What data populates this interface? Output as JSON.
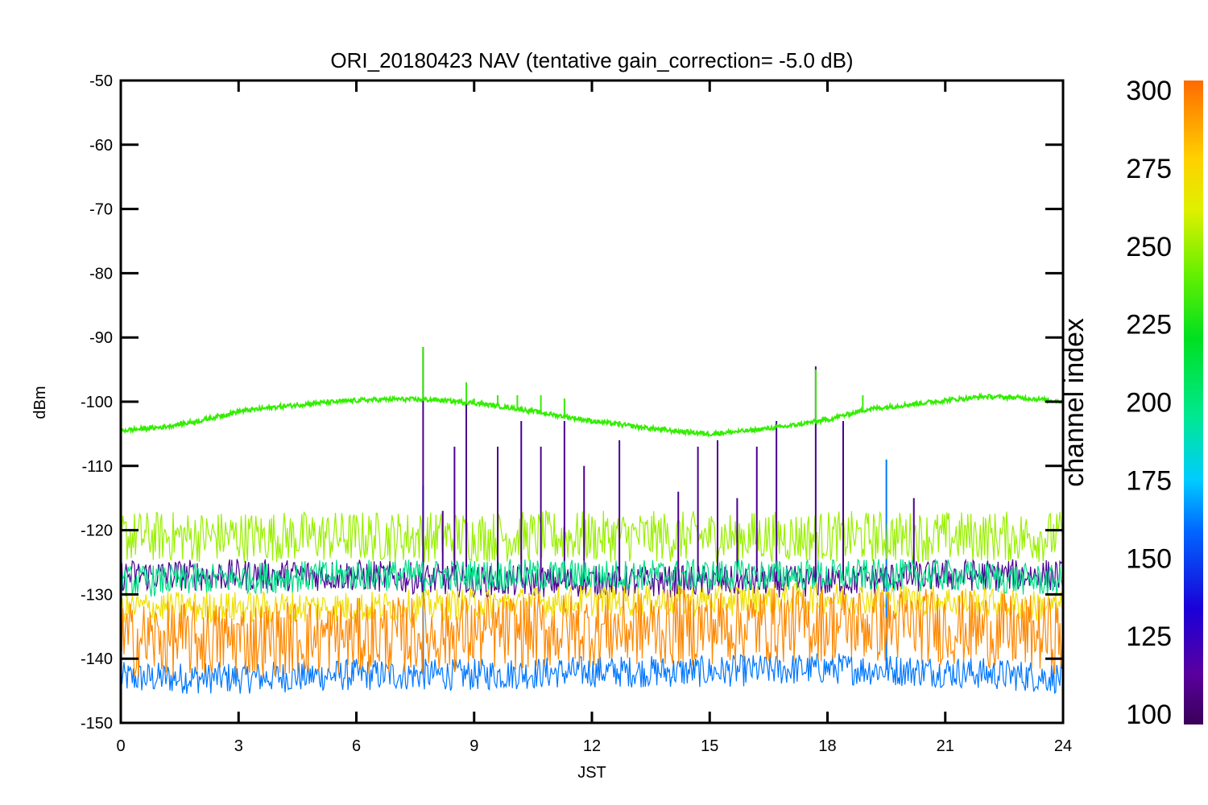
{
  "chart_data": {
    "type": "line",
    "title": "ORI_20180423 NAV (tentative gain_correction= -5.0 dB)",
    "xlabel": "JST",
    "ylabel": "dBm",
    "xlim": [
      0,
      24
    ],
    "ylim": [
      -150,
      -50
    ],
    "x_ticks": [
      0,
      3,
      6,
      9,
      12,
      15,
      18,
      21,
      24
    ],
    "y_ticks": [
      -50,
      -60,
      -70,
      -80,
      -90,
      -100,
      -110,
      -120,
      -130,
      -140,
      -150
    ],
    "x_tick_labels": [
      "0",
      "3",
      "6",
      "9",
      "12",
      "15",
      "18",
      "21",
      "24"
    ],
    "y_tick_labels": [
      "-50",
      "-60",
      "-70",
      "-80",
      "-90",
      "-100",
      "-110",
      "-120",
      "-130",
      "-140",
      "-150"
    ],
    "grid": false,
    "colorbar": {
      "title": "channel index",
      "range": [
        100,
        300
      ],
      "ticks": [
        100,
        125,
        150,
        175,
        200,
        225,
        250,
        275,
        300
      ],
      "tick_labels": [
        "100",
        "125",
        "150",
        "175",
        "200",
        "225",
        "250",
        "275",
        "300"
      ],
      "colormap": "rainbow"
    },
    "series": [
      {
        "channel": 240,
        "color": "#33ee00",
        "x": [
          0,
          1,
          2,
          3,
          4,
          5,
          6,
          7,
          8,
          9,
          10,
          11,
          12,
          13,
          14,
          15,
          16,
          17,
          18,
          19,
          20,
          21,
          22,
          23,
          24
        ],
        "y": [
          -104.5,
          -104,
          -103,
          -101.5,
          -100.8,
          -100.2,
          -99.8,
          -99.6,
          -99.7,
          -100.2,
          -101,
          -102,
          -103,
          -103.8,
          -104.5,
          -105,
          -104.5,
          -103.8,
          -102.8,
          -101.2,
          -100.5,
          -99.8,
          -99.2,
          -99.4,
          -100
        ],
        "spikes": [
          [
            7.7,
            -91.5
          ],
          [
            8.8,
            -97
          ],
          [
            9.6,
            -99
          ],
          [
            10.1,
            -99
          ],
          [
            10.7,
            -99
          ],
          [
            11.3,
            -99.5
          ],
          [
            17.7,
            -95
          ],
          [
            18.9,
            -99
          ],
          [
            9.0,
            -99.5
          ],
          [
            12.7,
            -103
          ]
        ]
      },
      {
        "channel": 262,
        "color": "#99f000",
        "x": [
          0,
          3,
          6,
          9,
          12,
          15,
          18,
          21,
          24
        ],
        "y": [
          -121,
          -121,
          -121,
          -121,
          -121,
          -121,
          -121,
          -121,
          -121
        ],
        "spread": 4
      },
      {
        "channel": 110,
        "color": "#4a0090",
        "x": [
          0,
          3,
          6,
          9,
          12,
          15,
          18,
          21,
          24
        ],
        "y": [
          -127,
          -127,
          -127,
          -128,
          -128,
          -128,
          -128,
          -127,
          -127
        ],
        "spikes": [
          [
            7.7,
            -91.5
          ],
          [
            8.8,
            -97
          ],
          [
            8.5,
            -107
          ],
          [
            9.6,
            -107
          ],
          [
            10.2,
            -103
          ],
          [
            10.7,
            -107
          ],
          [
            11.3,
            -103
          ],
          [
            11.8,
            -110
          ],
          [
            12.7,
            -106
          ],
          [
            14.2,
            -114
          ],
          [
            14.7,
            -107
          ],
          [
            15.2,
            -106
          ],
          [
            16.2,
            -107
          ],
          [
            16.7,
            -103
          ],
          [
            17.7,
            -94.5
          ],
          [
            18.4,
            -103
          ],
          [
            20.2,
            -115
          ],
          [
            8.2,
            -117
          ],
          [
            15.7,
            -115
          ]
        ]
      },
      {
        "channel": 200,
        "color": "#00dd88",
        "x": [
          0,
          3,
          6,
          9,
          12,
          15,
          18,
          21,
          24
        ],
        "y": [
          -128,
          -127.5,
          -127,
          -127,
          -127,
          -127,
          -127,
          -127,
          -128
        ]
      },
      {
        "channel": 270,
        "color": "#f0e000",
        "x": [
          0,
          3,
          6,
          9,
          12,
          15,
          18,
          21,
          24
        ],
        "y": [
          -132,
          -132,
          -132,
          -131.5,
          -131,
          -131,
          -130.5,
          -131,
          -132
        ]
      },
      {
        "channel": 290,
        "color": "#ff8800",
        "x": [
          0,
          3,
          6,
          9,
          12,
          15,
          18,
          21,
          24
        ],
        "y": [
          -137,
          -137,
          -136.5,
          -136,
          -135.5,
          -135,
          -134.5,
          -135,
          -136.5
        ],
        "spread": 6
      },
      {
        "channel": 160,
        "color": "#0077ff",
        "x": [
          0,
          3,
          6,
          9,
          12,
          15,
          18,
          21,
          24
        ],
        "y": [
          -143,
          -143,
          -142.5,
          -142.5,
          -142,
          -142,
          -141.5,
          -142,
          -143
        ],
        "spikes": [
          [
            7.7,
            -113
          ],
          [
            19.5,
            -109
          ]
        ]
      }
    ]
  }
}
